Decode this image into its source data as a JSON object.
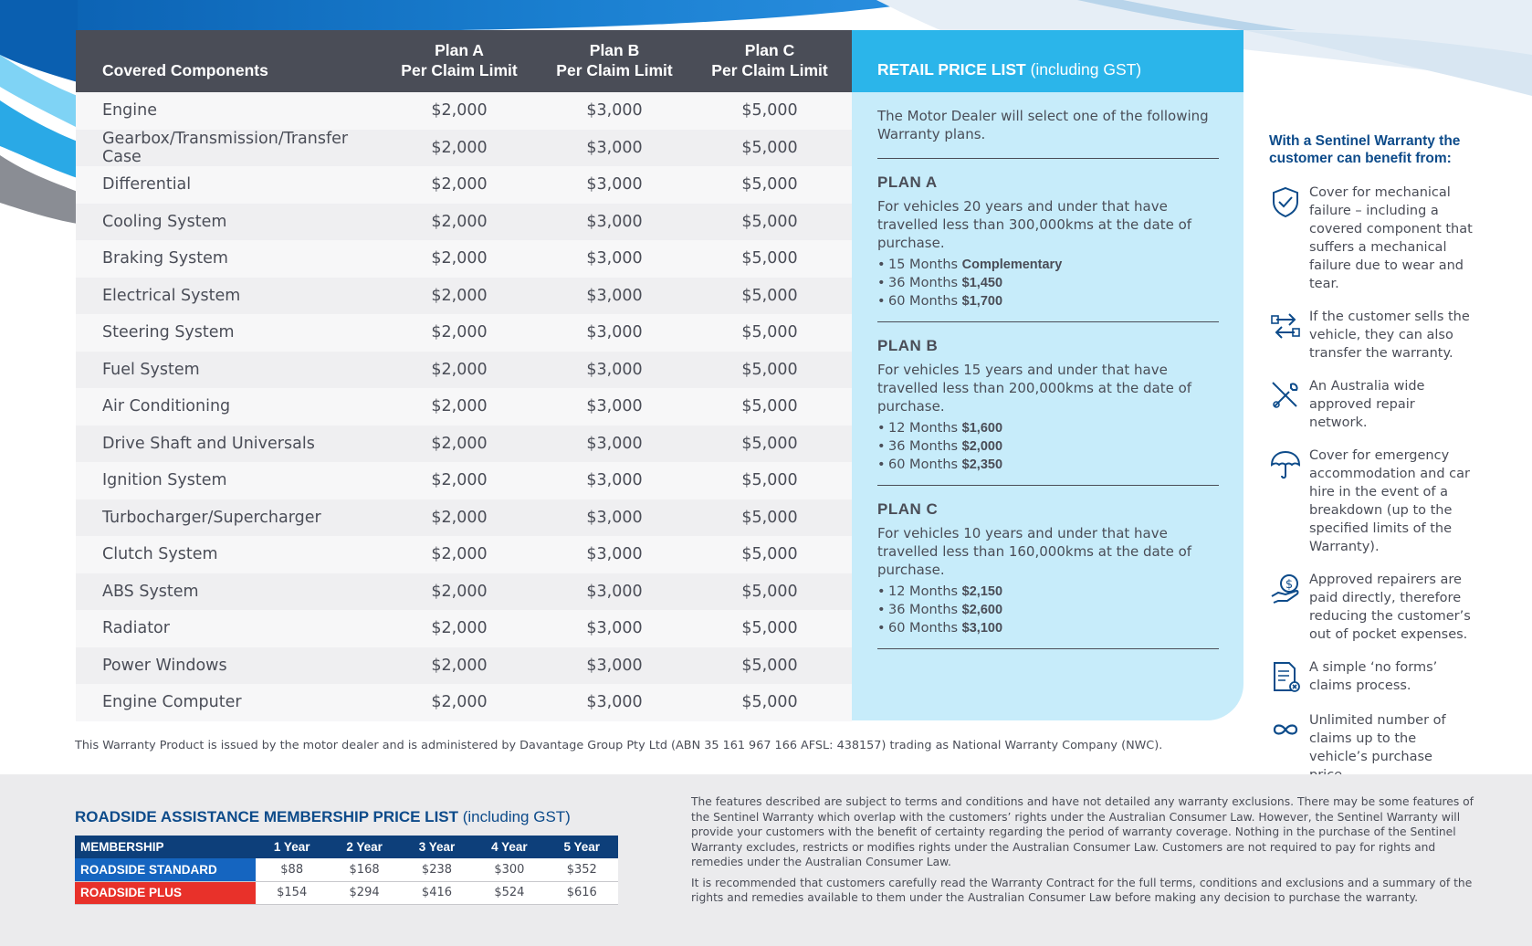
{
  "coverage_table": {
    "header": {
      "component": "Covered Components",
      "plan_a_line1": "Plan A",
      "plan_a_line2": "Per Claim Limit",
      "plan_b_line1": "Plan B",
      "plan_b_line2": "Per Claim Limit",
      "plan_c_line1": "Plan C",
      "plan_c_line2": "Per Claim Limit"
    },
    "rows": [
      {
        "component": "Engine",
        "a": "$2,000",
        "b": "$3,000",
        "c": "$5,000"
      },
      {
        "component": "Gearbox/Transmission/Transfer Case",
        "a": "$2,000",
        "b": "$3,000",
        "c": "$5,000"
      },
      {
        "component": "Differential",
        "a": "$2,000",
        "b": "$3,000",
        "c": "$5,000"
      },
      {
        "component": "Cooling System",
        "a": "$2,000",
        "b": "$3,000",
        "c": "$5,000"
      },
      {
        "component": "Braking System",
        "a": "$2,000",
        "b": "$3,000",
        "c": "$5,000"
      },
      {
        "component": "Electrical System",
        "a": "$2,000",
        "b": "$3,000",
        "c": "$5,000"
      },
      {
        "component": "Steering System",
        "a": "$2,000",
        "b": "$3,000",
        "c": "$5,000"
      },
      {
        "component": "Fuel System",
        "a": "$2,000",
        "b": "$3,000",
        "c": "$5,000"
      },
      {
        "component": "Air Conditioning",
        "a": "$2,000",
        "b": "$3,000",
        "c": "$5,000"
      },
      {
        "component": "Drive Shaft and Universals",
        "a": "$2,000",
        "b": "$3,000",
        "c": "$5,000"
      },
      {
        "component": "Ignition System",
        "a": "$2,000",
        "b": "$3,000",
        "c": "$5,000"
      },
      {
        "component": "Turbocharger/Supercharger",
        "a": "$2,000",
        "b": "$3,000",
        "c": "$5,000"
      },
      {
        "component": "Clutch System",
        "a": "$2,000",
        "b": "$3,000",
        "c": "$5,000"
      },
      {
        "component": "ABS System",
        "a": "$2,000",
        "b": "$3,000",
        "c": "$5,000"
      },
      {
        "component": "Radiator",
        "a": "$2,000",
        "b": "$3,000",
        "c": "$5,000"
      },
      {
        "component": "Power Windows",
        "a": "$2,000",
        "b": "$3,000",
        "c": "$5,000"
      },
      {
        "component": "Engine Computer",
        "a": "$2,000",
        "b": "$3,000",
        "c": "$5,000"
      }
    ]
  },
  "retail_price_list": {
    "title_bold": "RETAIL PRICE LIST",
    "title_rest": " (including GST)",
    "intro": "The Motor Dealer will select one of the following Warranty plans.",
    "plans": [
      {
        "title": "PLAN A",
        "desc": "For vehicles 20 years and under that have travelled less than 300,000kms at the date of purchase.",
        "items": [
          {
            "term": "15 Months",
            "price": "Complementary"
          },
          {
            "term": "36 Months",
            "price": "$1,450"
          },
          {
            "term": "60 Months",
            "price": "$1,700"
          }
        ]
      },
      {
        "title": "PLAN B",
        "desc": "For vehicles 15 years and under that have travelled less than 200,000kms at the date of purchase.",
        "items": [
          {
            "term": "12 Months",
            "price": "$1,600"
          },
          {
            "term": "36 Months",
            "price": "$2,000"
          },
          {
            "term": "60 Months",
            "price": "$2,350"
          }
        ]
      },
      {
        "title": "PLAN C",
        "desc": "For vehicles 10 years and under that have travelled less than 160,000kms at the date of purchase.",
        "items": [
          {
            "term": "12 Months",
            "price": "$2,150"
          },
          {
            "term": "36 Months",
            "price": "$2,600"
          },
          {
            "term": "60 Months",
            "price": "$3,100"
          }
        ]
      }
    ]
  },
  "benefits": {
    "title": "With a Sentinel Warranty the customer can benefit from:",
    "items": [
      {
        "icon": "shield-check-icon",
        "text": "Cover for mechanical failure – including a covered component that suffers a mechanical failure due to wear and tear."
      },
      {
        "icon": "transfer-arrows-icon",
        "text": "If the customer sells the vehicle, they can also transfer the warranty."
      },
      {
        "icon": "wrench-screwdriver-icon",
        "text": "An Australia wide approved repair network."
      },
      {
        "icon": "umbrella-icon",
        "text": "Cover for emergency accommodation and car hire in the event of a breakdown (up to the specified limits of the Warranty)."
      },
      {
        "icon": "hand-dollar-icon",
        "text": "Approved repairers are paid directly, therefore reducing the customer’s out of pocket expenses."
      },
      {
        "icon": "document-x-icon",
        "text": "A simple ‘no forms’ claims process."
      },
      {
        "icon": "infinity-icon",
        "text": "Unlimited number of claims up to the vehicle’s purchase price."
      }
    ]
  },
  "issuer_note": "This Warranty Product is issued by the motor dealer and is administered by Davantage Group Pty Ltd (ABN 35 161 967 166  AFSL: 438157) trading as National Warranty Company (NWC).",
  "roadside": {
    "title_bold": "ROADSIDE ASSISTANCE MEMBERSHIP PRICE LIST",
    "title_rest": " (including GST)",
    "headers": [
      "MEMBERSHIP",
      "1 Year",
      "2 Year",
      "3 Year",
      "4 Year",
      "5 Year"
    ],
    "standard": {
      "label": "ROADSIDE STANDARD",
      "prices": [
        "$88",
        "$168",
        "$238",
        "$300",
        "$352"
      ]
    },
    "plus": {
      "label": "ROADSIDE PLUS",
      "prices": [
        "$154",
        "$294",
        "$416",
        "$524",
        "$616"
      ]
    }
  },
  "terms": {
    "p1": "The features described are subject to terms and conditions and have not detailed any warranty exclusions. There may be some features of the Sentinel Warranty which overlap with the customers’ rights under the Australian Consumer Law. However, the Sentinel Warranty will provide your customers with the benefit of certainty regarding the period of warranty coverage. Nothing in the purchase of the Sentinel Warranty excludes, restricts or modifies rights under the Australian Consumer Law. Customers are not required to pay for rights and remedies under the Australian Consumer Law.",
    "p2": "It is recommended that customers carefully read the Warranty Contract for the full terms, conditions and exclusions and a summary of the rights and remedies available to them under the Australian Consumer Law before making any decision to purchase the warranty."
  },
  "colors": {
    "header_dark": "#4a4d57",
    "retail_head": "#2bb5ea",
    "retail_panel": "#c7ecfa",
    "brand_blue": "#0d4b8a",
    "standard_blue": "#1565c0",
    "plus_red": "#e8312a"
  }
}
